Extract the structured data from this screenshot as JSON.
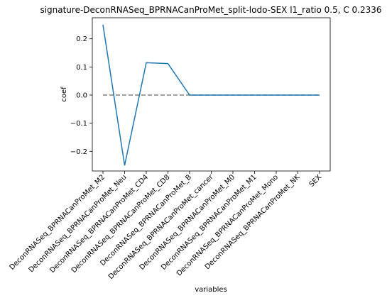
{
  "chart_data": {
    "type": "line",
    "title": "signature-DeconRNASeq_BPRNACanProMet_split-lodo-SEX l1_ratio 0.5, C 0.2336",
    "xlabel": "variables",
    "ylabel": "coef",
    "categories": [
      "DeconRNASeq_BPRNACanProMet_M2",
      "DeconRNASeq_BPRNACanProMet_Neu",
      "DeconRNASeq_BPRNACanProMet_CD4",
      "DeconRNASeq_BPRNACanProMet_CD8",
      "DeconRNASeq_BPRNACanProMet_B",
      "DeconRNASeq_BPRNACanProMet_cancer",
      "DeconRNASeq_BPRNACanProMet_M0",
      "DeconRNASeq_BPRNACanProMet_M1",
      "DeconRNASeq_BPRNACanProMet_Mono",
      "DeconRNASeq_BPRNACanProMet_NK",
      "SEX"
    ],
    "series": [
      {
        "values": [
          0.25,
          -0.25,
          0.115,
          0.112,
          0.0,
          0.0,
          0.0,
          0.0,
          0.0,
          0.0,
          0.0
        ],
        "color": "#1f77b4"
      }
    ],
    "reference_line": {
      "y": 0,
      "style": "dashed",
      "color": "#808080"
    },
    "yticks": [
      {
        "value": 0.2,
        "label": "0.2"
      },
      {
        "value": 0.1,
        "label": "0.1"
      },
      {
        "value": 0.0,
        "label": "0.0"
      },
      {
        "value": -0.1,
        "label": "−0.1"
      },
      {
        "value": -0.2,
        "label": "−0.2"
      }
    ],
    "ylim": [
      -0.27,
      0.275
    ],
    "grid": false,
    "legend": "none"
  }
}
